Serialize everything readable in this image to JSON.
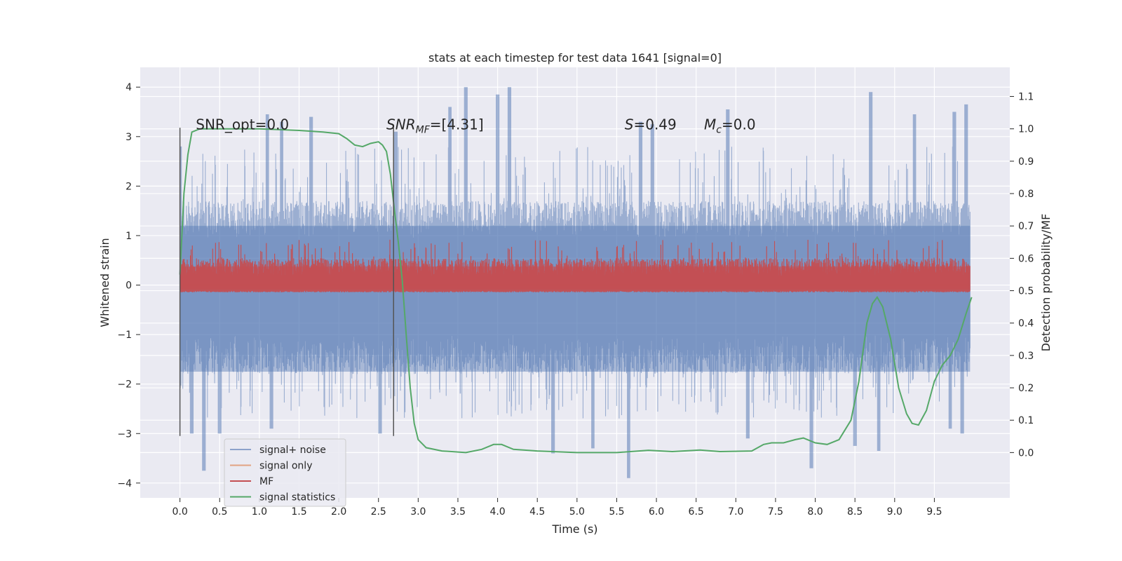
{
  "chart_data": {
    "type": "line",
    "title": "stats at each timestep for test data 1641 [signal=0]",
    "xlabel": "Time (s)",
    "ylabel": "Whitened strain",
    "y2label": "Detection probability/MF",
    "xlim": [
      -0.5,
      10.45
    ],
    "ylim": [
      -4.3,
      4.4
    ],
    "y2lim": [
      -0.14,
      1.19
    ],
    "grid": true,
    "legend_position": "lower-left",
    "x_ticks": [
      0.0,
      0.5,
      1.0,
      1.5,
      2.0,
      2.5,
      3.0,
      3.5,
      4.0,
      4.5,
      5.0,
      5.5,
      6.0,
      6.5,
      7.0,
      7.5,
      8.0,
      8.5,
      9.0,
      9.5
    ],
    "x_tick_labels": [
      "0.0",
      "0.5",
      "1.0",
      "1.5",
      "2.0",
      "2.5",
      "3.0",
      "3.5",
      "4.0",
      "4.5",
      "5.0",
      "5.5",
      "6.0",
      "6.5",
      "7.0",
      "7.5",
      "8.0",
      "8.5",
      "9.0",
      "9.5"
    ],
    "y_ticks": [
      -4,
      -3,
      -2,
      -1,
      0,
      1,
      2,
      3,
      4
    ],
    "y_tick_labels": [
      "−4",
      "−3",
      "−2",
      "−1",
      "0",
      "1",
      "2",
      "3",
      "4"
    ],
    "y2_ticks": [
      0.0,
      0.1,
      0.2,
      0.3,
      0.4,
      0.5,
      0.6,
      0.7,
      0.8,
      0.9,
      1.0,
      1.1
    ],
    "y2_tick_labels": [
      "0.0",
      "0.1",
      "0.2",
      "0.3",
      "0.4",
      "0.5",
      "0.6",
      "0.7",
      "0.8",
      "0.9",
      "1.0",
      "1.1"
    ],
    "annotations": [
      {
        "label": "SNR_opt=0.0",
        "x": 0.2,
        "y": 3.2
      },
      {
        "label_main": "SNR",
        "label_sub": "MF",
        "label_rest": "=[4.31]",
        "x": 2.6,
        "y": 3.2
      },
      {
        "label_main": "S",
        "label_rest": "=0.49",
        "x": 5.6,
        "y": 3.2
      },
      {
        "label_main": "M",
        "label_sub": "c",
        "label_rest": "=0.0",
        "x": 6.6,
        "y": 3.2
      }
    ],
    "vlines": [
      {
        "x": 0.0,
        "y_from": -3.05,
        "y_to": 3.18
      },
      {
        "x": 2.69,
        "y_from": -3.05,
        "y_to": 3.18
      }
    ],
    "series": [
      {
        "name": "signal+ noise",
        "axis": "left",
        "color": "#4c72b0",
        "opacity": 0.5,
        "x_range": [
          0.0,
          9.95
        ],
        "envelope": {
          "typical_low": -1.8,
          "typical_high": 1.7,
          "peaks_high": [
            [
              0.0,
              2.8
            ],
            [
              1.1,
              3.45
            ],
            [
              1.28,
              3.3
            ],
            [
              1.65,
              3.4
            ],
            [
              2.72,
              3.1
            ],
            [
              3.4,
              3.6
            ],
            [
              3.6,
              4.0
            ],
            [
              4.0,
              3.85
            ],
            [
              4.15,
              4.0
            ],
            [
              5.8,
              3.3
            ],
            [
              5.95,
              3.25
            ],
            [
              6.9,
              3.55
            ],
            [
              8.7,
              3.9
            ],
            [
              9.25,
              3.45
            ],
            [
              9.75,
              3.5
            ],
            [
              9.9,
              3.65
            ]
          ],
          "peaks_low": [
            [
              0.15,
              -3.0
            ],
            [
              0.3,
              -3.75
            ],
            [
              0.5,
              -3.0
            ],
            [
              1.15,
              -2.9
            ],
            [
              2.52,
              -3.0
            ],
            [
              4.7,
              -3.4
            ],
            [
              5.2,
              -3.3
            ],
            [
              5.65,
              -3.9
            ],
            [
              7.15,
              -3.1
            ],
            [
              7.95,
              -3.7
            ],
            [
              8.5,
              -3.25
            ],
            [
              8.8,
              -3.35
            ],
            [
              9.7,
              -2.9
            ],
            [
              9.85,
              -3.0
            ]
          ]
        }
      },
      {
        "name": "signal only",
        "axis": "left",
        "color": "#dd8452",
        "x": [
          0.0,
          9.95
        ],
        "y": [
          0.0,
          0.0
        ]
      },
      {
        "name": "MF",
        "axis": "right",
        "color": "#c44e52",
        "x_range": [
          0.0,
          9.95
        ],
        "band": {
          "low": 0.5,
          "typical_high": 0.6,
          "peak_high": 0.66
        }
      },
      {
        "name": "signal statistics",
        "axis": "right",
        "color": "#55a868",
        "x": [
          0.0,
          0.05,
          0.1,
          0.15,
          0.25,
          0.5,
          1.0,
          1.5,
          1.8,
          2.0,
          2.1,
          2.2,
          2.3,
          2.4,
          2.5,
          2.55,
          2.6,
          2.65,
          2.7,
          2.75,
          2.8,
          2.85,
          2.9,
          2.95,
          3.0,
          3.1,
          3.3,
          3.6,
          3.8,
          3.95,
          4.05,
          4.2,
          4.5,
          5.0,
          5.5,
          5.9,
          6.2,
          6.55,
          6.8,
          7.2,
          7.35,
          7.45,
          7.6,
          7.75,
          7.85,
          8.0,
          8.15,
          8.3,
          8.45,
          8.55,
          8.65,
          8.72,
          8.78,
          8.85,
          8.95,
          9.05,
          9.15,
          9.22,
          9.3,
          9.4,
          9.5,
          9.6,
          9.7,
          9.8,
          9.9,
          9.97
        ],
        "y": [
          0.55,
          0.8,
          0.92,
          0.99,
          1.0,
          1.0,
          1.0,
          0.995,
          0.99,
          0.985,
          0.97,
          0.95,
          0.945,
          0.955,
          0.96,
          0.95,
          0.93,
          0.86,
          0.75,
          0.65,
          0.53,
          0.36,
          0.2,
          0.09,
          0.04,
          0.015,
          0.005,
          0.0,
          0.01,
          0.025,
          0.025,
          0.01,
          0.005,
          0.0,
          0.0,
          0.007,
          0.003,
          0.008,
          0.003,
          0.005,
          0.025,
          0.03,
          0.03,
          0.04,
          0.045,
          0.03,
          0.025,
          0.04,
          0.1,
          0.22,
          0.4,
          0.46,
          0.48,
          0.45,
          0.35,
          0.2,
          0.12,
          0.09,
          0.085,
          0.13,
          0.22,
          0.27,
          0.3,
          0.35,
          0.43,
          0.48
        ]
      }
    ]
  }
}
